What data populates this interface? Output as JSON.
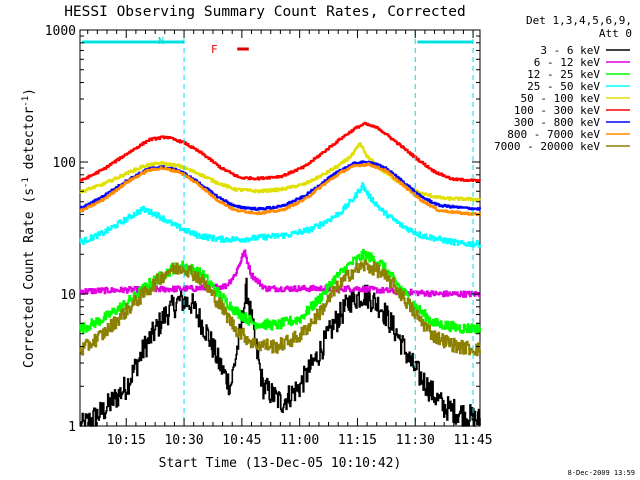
{
  "chart_data": {
    "type": "line",
    "title": "HESSI Observing Summary Count Rates, Corrected",
    "xlabel": "Start Time (13-Dec-05 10:10:42)",
    "ylabel": "Corrected Count Rate (s",
    "ylabel_sup1": "-1",
    "ylabel_mid": " detector",
    "ylabel_sup2": "-1",
    "ylabel_end": ")",
    "yscale": "log",
    "ylim": [
      1,
      1000
    ],
    "xlim_minutes": [
      10.05,
      11.78
    ],
    "x_ticks": [
      {
        "label": "10:15",
        "t": 10.25
      },
      {
        "label": "10:30",
        "t": 10.5
      },
      {
        "label": "10:45",
        "t": 10.75
      },
      {
        "label": "11:00",
        "t": 11.0
      },
      {
        "label": "11:15",
        "t": 11.25
      },
      {
        "label": "11:30",
        "t": 11.5
      },
      {
        "label": "11:45",
        "t": 11.75
      }
    ],
    "y_ticks": [
      {
        "label": "1",
        "v": 1
      },
      {
        "label": "10",
        "v": 10
      },
      {
        "label": "100",
        "v": 100
      },
      {
        "label": "1000",
        "v": 1000
      }
    ],
    "legend_header": [
      "Det 1,3,4,5,6,9,",
      "Att 0"
    ],
    "legend_position": "right",
    "annotations": {
      "night_label": "N",
      "flare_label": "F",
      "footer_date": "8-Dec-2009 13:59"
    },
    "night_intervals": [
      [
        10.05,
        10.5
      ],
      [
        11.5,
        11.75
      ]
    ],
    "flare_interval": [
      10.73,
      10.78
    ],
    "vertical_dashed_lines_t": [
      10.5,
      11.5,
      11.75
    ],
    "series": [
      {
        "name": "3 - 6 keV",
        "color": "#000000",
        "noise": 0.22,
        "points": [
          [
            10.06,
            1.0
          ],
          [
            10.15,
            1.3
          ],
          [
            10.25,
            2.0
          ],
          [
            10.33,
            4.0
          ],
          [
            10.42,
            7.0
          ],
          [
            10.48,
            9.0
          ],
          [
            10.53,
            8.5
          ],
          [
            10.6,
            5.0
          ],
          [
            10.65,
            3.0
          ],
          [
            10.7,
            2.0
          ],
          [
            10.74,
            5.0
          ],
          [
            10.77,
            11.0
          ],
          [
            10.8,
            5.0
          ],
          [
            10.84,
            2.0
          ],
          [
            10.92,
            1.5
          ],
          [
            11.0,
            2.0
          ],
          [
            11.08,
            3.5
          ],
          [
            11.15,
            6.0
          ],
          [
            11.22,
            9.0
          ],
          [
            11.28,
            10.0
          ],
          [
            11.35,
            8.0
          ],
          [
            11.42,
            5.0
          ],
          [
            11.48,
            3.0
          ],
          [
            11.55,
            2.0
          ],
          [
            11.62,
            1.4
          ],
          [
            11.72,
            1.2
          ],
          [
            11.78,
            1.1
          ]
        ]
      },
      {
        "name": "6 - 12 keV",
        "color": "#e000e0",
        "noise": 0.05,
        "points": [
          [
            10.06,
            10.5
          ],
          [
            10.3,
            10.8
          ],
          [
            10.55,
            11.0
          ],
          [
            10.68,
            11.5
          ],
          [
            10.72,
            14.0
          ],
          [
            10.76,
            21.0
          ],
          [
            10.79,
            14.0
          ],
          [
            10.85,
            11.0
          ],
          [
            11.0,
            11.0
          ],
          [
            11.15,
            11.0
          ],
          [
            11.25,
            11.0
          ],
          [
            11.4,
            10.5
          ],
          [
            11.6,
            10.0
          ],
          [
            11.78,
            10.0
          ]
        ]
      },
      {
        "name": "12 - 25 keV",
        "color": "#00ff00",
        "noise": 0.09,
        "points": [
          [
            10.06,
            5.5
          ],
          [
            10.15,
            6.5
          ],
          [
            10.25,
            8.5
          ],
          [
            10.35,
            12.0
          ],
          [
            10.45,
            15.5
          ],
          [
            10.5,
            16.5
          ],
          [
            10.58,
            14.0
          ],
          [
            10.65,
            10.0
          ],
          [
            10.72,
            7.5
          ],
          [
            10.8,
            6.0
          ],
          [
            10.9,
            5.8
          ],
          [
            11.0,
            6.5
          ],
          [
            11.08,
            9.0
          ],
          [
            11.15,
            13.0
          ],
          [
            11.22,
            17.0
          ],
          [
            11.28,
            20.0
          ],
          [
            11.35,
            17.0
          ],
          [
            11.42,
            12.0
          ],
          [
            11.5,
            8.0
          ],
          [
            11.58,
            6.0
          ],
          [
            11.7,
            5.5
          ],
          [
            11.78,
            5.5
          ]
        ]
      },
      {
        "name": "25 - 50 keV",
        "color": "#00ffff",
        "noise": 0.05,
        "points": [
          [
            10.06,
            25.0
          ],
          [
            10.15,
            29.0
          ],
          [
            10.25,
            37.0
          ],
          [
            10.32,
            44.0
          ],
          [
            10.38,
            40.0
          ],
          [
            10.46,
            33.0
          ],
          [
            10.55,
            28.0
          ],
          [
            10.65,
            26.0
          ],
          [
            10.75,
            26.0
          ],
          [
            10.85,
            27.0
          ],
          [
            10.95,
            28.0
          ],
          [
            11.05,
            31.0
          ],
          [
            11.12,
            36.0
          ],
          [
            11.18,
            42.0
          ],
          [
            11.24,
            55.0
          ],
          [
            11.27,
            67.0
          ],
          [
            11.3,
            55.0
          ],
          [
            11.36,
            42.0
          ],
          [
            11.44,
            33.0
          ],
          [
            11.52,
            28.0
          ],
          [
            11.6,
            26.0
          ],
          [
            11.7,
            24.0
          ],
          [
            11.78,
            24.0
          ]
        ]
      },
      {
        "name": "50 - 100 keV",
        "color": "#e0e000",
        "noise": 0.025,
        "points": [
          [
            10.06,
            60.0
          ],
          [
            10.15,
            68.0
          ],
          [
            10.25,
            82.0
          ],
          [
            10.33,
            94.0
          ],
          [
            10.4,
            98.0
          ],
          [
            10.48,
            93.0
          ],
          [
            10.56,
            82.0
          ],
          [
            10.64,
            70.0
          ],
          [
            10.72,
            62.0
          ],
          [
            10.82,
            60.0
          ],
          [
            10.92,
            62.0
          ],
          [
            11.02,
            68.0
          ],
          [
            11.1,
            80.0
          ],
          [
            11.18,
            97.0
          ],
          [
            11.23,
            115.0
          ],
          [
            11.26,
            138.0
          ],
          [
            11.29,
            110.0
          ],
          [
            11.35,
            88.0
          ],
          [
            11.43,
            70.0
          ],
          [
            11.52,
            58.0
          ],
          [
            11.62,
            53.0
          ],
          [
            11.78,
            52.0
          ]
        ]
      },
      {
        "name": "100 - 300 keV",
        "color": "#ff0000",
        "noise": 0.02,
        "points": [
          [
            10.06,
            73.0
          ],
          [
            10.15,
            88.0
          ],
          [
            10.25,
            115.0
          ],
          [
            10.35,
            148.0
          ],
          [
            10.42,
            155.0
          ],
          [
            10.5,
            140.0
          ],
          [
            10.58,
            115.0
          ],
          [
            10.66,
            90.0
          ],
          [
            10.74,
            76.0
          ],
          [
            10.82,
            75.0
          ],
          [
            10.92,
            78.0
          ],
          [
            11.02,
            92.0
          ],
          [
            11.1,
            118.0
          ],
          [
            11.18,
            152.0
          ],
          [
            11.24,
            180.0
          ],
          [
            11.28,
            195.0
          ],
          [
            11.34,
            180.0
          ],
          [
            11.42,
            140.0
          ],
          [
            11.5,
            108.0
          ],
          [
            11.58,
            85.0
          ],
          [
            11.66,
            74.0
          ],
          [
            11.78,
            72.0
          ]
        ]
      },
      {
        "name": "300 - 800 keV",
        "color": "#0000ff",
        "noise": 0.02,
        "points": [
          [
            10.06,
            45.0
          ],
          [
            10.15,
            55.0
          ],
          [
            10.25,
            72.0
          ],
          [
            10.34,
            88.0
          ],
          [
            10.4,
            92.0
          ],
          [
            10.48,
            86.0
          ],
          [
            10.56,
            70.0
          ],
          [
            10.64,
            55.0
          ],
          [
            10.72,
            46.0
          ],
          [
            10.82,
            44.0
          ],
          [
            10.92,
            46.0
          ],
          [
            11.02,
            55.0
          ],
          [
            11.1,
            70.0
          ],
          [
            11.18,
            88.0
          ],
          [
            11.24,
            98.0
          ],
          [
            11.3,
            100.0
          ],
          [
            11.37,
            90.0
          ],
          [
            11.45,
            70.0
          ],
          [
            11.52,
            55.0
          ],
          [
            11.6,
            47.0
          ],
          [
            11.7,
            45.0
          ],
          [
            11.78,
            44.0
          ]
        ]
      },
      {
        "name": "800 - 7000 keV",
        "color": "#ff8c00",
        "noise": 0.02,
        "points": [
          [
            10.06,
            43.0
          ],
          [
            10.15,
            52.0
          ],
          [
            10.25,
            70.0
          ],
          [
            10.34,
            86.0
          ],
          [
            10.4,
            90.0
          ],
          [
            10.48,
            84.0
          ],
          [
            10.56,
            68.0
          ],
          [
            10.64,
            52.0
          ],
          [
            10.72,
            43.0
          ],
          [
            10.82,
            41.0
          ],
          [
            10.92,
            43.0
          ],
          [
            11.02,
            52.0
          ],
          [
            11.1,
            67.0
          ],
          [
            11.18,
            84.0
          ],
          [
            11.24,
            94.0
          ],
          [
            11.3,
            96.0
          ],
          [
            11.37,
            86.0
          ],
          [
            11.45,
            66.0
          ],
          [
            11.52,
            52.0
          ],
          [
            11.6,
            43.0
          ],
          [
            11.7,
            41.0
          ],
          [
            11.78,
            40.0
          ]
        ]
      },
      {
        "name": "7000 - 20000 keV",
        "color": "#8b8000",
        "noise": 0.12,
        "points": [
          [
            10.06,
            3.8
          ],
          [
            10.15,
            5.0
          ],
          [
            10.25,
            7.5
          ],
          [
            10.35,
            11.0
          ],
          [
            10.43,
            15.0
          ],
          [
            10.5,
            16.0
          ],
          [
            10.57,
            13.0
          ],
          [
            10.65,
            8.5
          ],
          [
            10.72,
            5.5
          ],
          [
            10.8,
            4.2
          ],
          [
            10.9,
            4.0
          ],
          [
            11.0,
            4.8
          ],
          [
            11.08,
            7.0
          ],
          [
            11.15,
            10.5
          ],
          [
            11.22,
            14.5
          ],
          [
            11.28,
            16.5
          ],
          [
            11.34,
            15.0
          ],
          [
            11.42,
            11.0
          ],
          [
            11.5,
            7.0
          ],
          [
            11.58,
            4.8
          ],
          [
            11.68,
            4.0
          ],
          [
            11.78,
            3.8
          ]
        ]
      }
    ]
  }
}
